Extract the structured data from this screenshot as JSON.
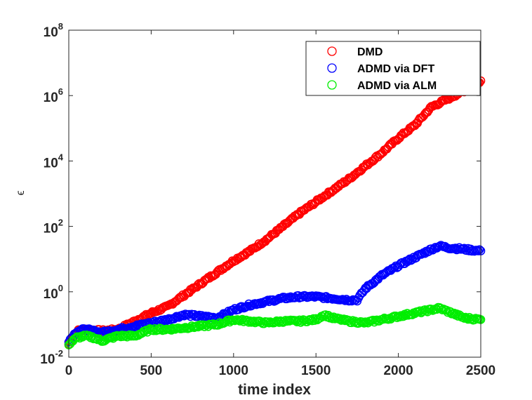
{
  "chart_data": {
    "type": "scatter",
    "title": "",
    "xlabel": "time index",
    "ylabel": "ϵ",
    "xlim": [
      0,
      2500
    ],
    "ylim_log10": [
      -2,
      8
    ],
    "yscale": "log",
    "grid": false,
    "legend_position": "top-right",
    "x_ticks": [
      {
        "value": 0,
        "label": "0"
      },
      {
        "value": 500,
        "label": "500"
      },
      {
        "value": 1000,
        "label": "1000"
      },
      {
        "value": 1500,
        "label": "1500"
      },
      {
        "value": 2000,
        "label": "2000"
      },
      {
        "value": 2500,
        "label": "2500"
      }
    ],
    "y_ticks": [
      {
        "exp_value": -2,
        "base": "10",
        "exp": "-2"
      },
      {
        "exp_value": 0,
        "base": "10",
        "exp": "0"
      },
      {
        "exp_value": 2,
        "base": "10",
        "exp": "2"
      },
      {
        "exp_value": 4,
        "base": "10",
        "exp": "4"
      },
      {
        "exp_value": 6,
        "base": "10",
        "exp": "6"
      },
      {
        "exp_value": 8,
        "base": "10",
        "exp": "8"
      }
    ],
    "series": [
      {
        "name": "DMD",
        "color": "#ff0000",
        "marker": "circle-open",
        "points_log10": [
          [
            0,
            -1.6
          ],
          [
            50,
            -1.2
          ],
          [
            100,
            -1.15
          ],
          [
            200,
            -1.2
          ],
          [
            300,
            -1.15
          ],
          [
            400,
            -0.9
          ],
          [
            500,
            -0.65
          ],
          [
            600,
            -0.45
          ],
          [
            700,
            -0.1
          ],
          [
            800,
            0.25
          ],
          [
            900,
            0.6
          ],
          [
            1000,
            0.95
          ],
          [
            1100,
            1.25
          ],
          [
            1200,
            1.6
          ],
          [
            1300,
            2.0
          ],
          [
            1400,
            2.4
          ],
          [
            1500,
            2.75
          ],
          [
            1600,
            3.1
          ],
          [
            1700,
            3.45
          ],
          [
            1800,
            3.85
          ],
          [
            1900,
            4.25
          ],
          [
            2000,
            4.7
          ],
          [
            2100,
            5.1
          ],
          [
            2200,
            5.65
          ],
          [
            2300,
            5.9
          ],
          [
            2400,
            6.15
          ],
          [
            2500,
            6.45
          ]
        ]
      },
      {
        "name": "ADMD via DFT",
        "color": "#0000ff",
        "marker": "circle-open",
        "points_log10": [
          [
            0,
            -1.5
          ],
          [
            50,
            -1.2
          ],
          [
            100,
            -1.15
          ],
          [
            200,
            -1.25
          ],
          [
            300,
            -1.15
          ],
          [
            400,
            -1.05
          ],
          [
            500,
            -0.95
          ],
          [
            600,
            -0.85
          ],
          [
            700,
            -0.7
          ],
          [
            800,
            -0.75
          ],
          [
            900,
            -0.8
          ],
          [
            1000,
            -0.55
          ],
          [
            1100,
            -0.4
          ],
          [
            1200,
            -0.3
          ],
          [
            1300,
            -0.2
          ],
          [
            1400,
            -0.15
          ],
          [
            1500,
            -0.15
          ],
          [
            1600,
            -0.2
          ],
          [
            1700,
            -0.25
          ],
          [
            1750,
            -0.25
          ],
          [
            1800,
            0.1
          ],
          [
            1900,
            0.5
          ],
          [
            2000,
            0.8
          ],
          [
            2100,
            1.05
          ],
          [
            2200,
            1.3
          ],
          [
            2250,
            1.4
          ],
          [
            2300,
            1.35
          ],
          [
            2400,
            1.3
          ],
          [
            2500,
            1.25
          ]
        ]
      },
      {
        "name": "ADMD via ALM",
        "color": "#00ee00",
        "marker": "circle-open",
        "points_log10": [
          [
            0,
            -1.6
          ],
          [
            50,
            -1.4
          ],
          [
            100,
            -1.35
          ],
          [
            150,
            -1.4
          ],
          [
            200,
            -1.5
          ],
          [
            300,
            -1.35
          ],
          [
            400,
            -1.35
          ],
          [
            500,
            -1.15
          ],
          [
            600,
            -1.15
          ],
          [
            700,
            -1.1
          ],
          [
            800,
            -1.05
          ],
          [
            900,
            -1.0
          ],
          [
            1000,
            -0.85
          ],
          [
            1100,
            -0.9
          ],
          [
            1200,
            -0.95
          ],
          [
            1300,
            -0.9
          ],
          [
            1400,
            -0.9
          ],
          [
            1500,
            -0.85
          ],
          [
            1550,
            -0.7
          ],
          [
            1600,
            -0.8
          ],
          [
            1700,
            -0.9
          ],
          [
            1800,
            -0.95
          ],
          [
            1900,
            -0.85
          ],
          [
            2000,
            -0.75
          ],
          [
            2100,
            -0.65
          ],
          [
            2200,
            -0.55
          ],
          [
            2250,
            -0.5
          ],
          [
            2300,
            -0.6
          ],
          [
            2400,
            -0.8
          ],
          [
            2500,
            -0.85
          ]
        ]
      }
    ]
  }
}
